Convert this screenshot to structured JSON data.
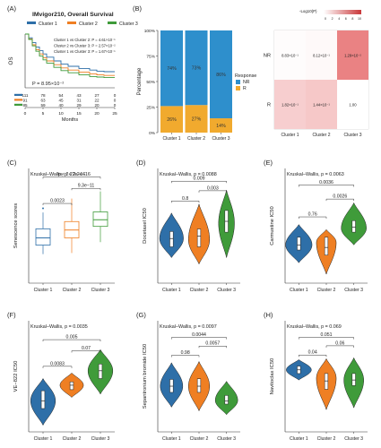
{
  "figure": {
    "colors": {
      "cluster1": "#2e6fa8",
      "cluster2": "#ef7f23",
      "cluster3": "#3f9b3a",
      "nr": "#2e8fcc",
      "r": "#f1aa2e"
    },
    "clusters": [
      "Cluster 1",
      "Cluster 2",
      "Cluster 3"
    ]
  },
  "chart_data": [
    {
      "id": "A",
      "panel_label": "(A)",
      "type": "line",
      "title": "IMvigor210, Overall Survival",
      "ylabel": "OS",
      "xlabel": "Months",
      "legend": [
        "Cluster 1",
        "Cluster 2",
        "Cluster 3"
      ],
      "annotations": [
        "Cluster 1 vs Cluster 2: P = 4.61×10⁻¹",
        "Cluster 2 vs Cluster 3: P = 2.57×10⁻²",
        "Cluster 1 vs Cluster 3: P = 1.67×10⁻¹"
      ],
      "pvalue": "P = 8.95×10⁻²",
      "xticks": [
        "0",
        "5",
        "10",
        "15",
        "20",
        "25"
      ],
      "xlim": [
        0,
        25
      ],
      "ylim": [
        0,
        1
      ],
      "series": [
        {
          "name": "Cluster 1",
          "x": [
            0,
            1,
            2,
            3,
            4,
            5,
            6,
            8,
            10,
            12,
            15,
            18,
            20,
            22,
            25
          ],
          "y": [
            1.0,
            0.93,
            0.84,
            0.76,
            0.69,
            0.63,
            0.57,
            0.5,
            0.44,
            0.4,
            0.36,
            0.33,
            0.31,
            0.3,
            0.3
          ]
        },
        {
          "name": "Cluster 2",
          "x": [
            0,
            1,
            2,
            3,
            4,
            5,
            6,
            8,
            10,
            12,
            15,
            18,
            20,
            22,
            25
          ],
          "y": [
            1.0,
            0.91,
            0.8,
            0.71,
            0.63,
            0.56,
            0.5,
            0.43,
            0.37,
            0.33,
            0.29,
            0.26,
            0.24,
            0.23,
            0.23
          ]
        },
        {
          "name": "Cluster 3",
          "x": [
            0,
            1,
            2,
            3,
            4,
            5,
            6,
            8,
            10,
            12,
            15,
            18,
            20,
            22,
            25
          ],
          "y": [
            1.0,
            0.9,
            0.78,
            0.68,
            0.59,
            0.52,
            0.46,
            0.38,
            0.32,
            0.28,
            0.24,
            0.21,
            0.2,
            0.19,
            0.19
          ]
        }
      ],
      "risk_table": [
        [
          "111",
          "78",
          "54",
          "43",
          "27",
          "0"
        ],
        [
          "91",
          "63",
          "45",
          "31",
          "22",
          "0"
        ],
        [
          "85",
          "59",
          "40",
          "29",
          "20",
          "0"
        ]
      ]
    },
    {
      "id": "B1",
      "panel_label": "(B)",
      "type": "bar",
      "ylabel": "Percentage",
      "categories": [
        "Cluster 1",
        "Cluster 2",
        "Cluster 3"
      ],
      "yticks": [
        "0%",
        "25%",
        "50%",
        "75%",
        "100%"
      ],
      "series": [
        {
          "name": "R",
          "values": [
            26,
            27,
            14
          ],
          "labels": [
            "26%",
            "27%",
            "14%"
          ]
        },
        {
          "name": "NR",
          "values": [
            74,
            73,
            86
          ],
          "labels": [
            "74%",
            "73%",
            "86%"
          ]
        }
      ],
      "legend_title": "Response",
      "legend": [
        "NR",
        "R"
      ]
    },
    {
      "id": "B2",
      "type": "heatmap",
      "legend_title": "-Log10(P)",
      "legend_ticks": [
        "0",
        "2",
        "4",
        "6",
        "8",
        "10"
      ],
      "rows": [
        "NR",
        "R"
      ],
      "cols": [
        "Cluster 1",
        "Cluster 2",
        "Cluster 3"
      ],
      "cells": [
        {
          "row": 0,
          "col": 0,
          "label": "8.83×10⁻¹",
          "value": 0.05
        },
        {
          "row": 0,
          "col": 1,
          "label": "8.12×10⁻¹",
          "value": 0.09
        },
        {
          "row": 0,
          "col": 2,
          "label": "1.29×10⁻²",
          "value": 1.9
        },
        {
          "row": 1,
          "col": 0,
          "label": "1.82×10⁻¹",
          "value": 0.74
        },
        {
          "row": 1,
          "col": 1,
          "label": "1.44×10⁻¹",
          "value": 0.84
        },
        {
          "row": 1,
          "col": 2,
          "label": "1.00",
          "value": 0.0
        }
      ]
    },
    {
      "id": "C",
      "panel_label": "(C)",
      "type": "box",
      "ylabel": "Senescence scores",
      "test": "Kruskal–Wallis, p < 2.2e−16",
      "categories": [
        "Cluster 1",
        "Cluster 2",
        "Cluster 3"
      ],
      "ylim": [
        -0.9,
        1.0
      ],
      "boxes": [
        {
          "q1": -0.27,
          "med": -0.15,
          "q3": 0.0,
          "lo": -0.42,
          "hi": 0.27,
          "outliers": [
            0.34
          ]
        },
        {
          "q1": -0.15,
          "med": -0.02,
          "q3": 0.12,
          "lo": -0.4,
          "hi": 0.5,
          "outliers": []
        },
        {
          "q1": 0.04,
          "med": 0.15,
          "q3": 0.28,
          "lo": -0.22,
          "hi": 0.62,
          "outliers": []
        }
      ],
      "comparisons": [
        {
          "a": 0,
          "b": 1,
          "label": "0.0023",
          "y": 0.42
        },
        {
          "a": 1,
          "b": 2,
          "label": "9.3e−11",
          "y": 0.67
        },
        {
          "a": 0,
          "b": 2,
          "label": "p < 2.22e−16",
          "y": 0.86
        }
      ]
    },
    {
      "id": "D",
      "panel_label": "(D)",
      "type": "violin",
      "ylabel": "Docetaxel IC50",
      "test": "Kruskal–Wallis, p = 0.0088",
      "categories": [
        "Cluster 1",
        "Cluster 2",
        "Cluster 3"
      ],
      "ylim": [
        -10,
        8
      ],
      "violins": [
        {
          "min": -6.0,
          "max": 1.0,
          "peak": -3.0,
          "width": 0.36,
          "q1": -4.3,
          "med": -3.0,
          "q3": -1.9
        },
        {
          "min": -7.0,
          "max": 2.4,
          "peak": -3.2,
          "width": 0.32,
          "q1": -4.3,
          "med": -2.6,
          "q3": -1.5
        },
        {
          "min": -6.0,
          "max": 4.6,
          "peak": -0.6,
          "width": 0.24,
          "q1": -2.0,
          "med": -0.3,
          "q3": 1.4
        }
      ],
      "comparisons": [
        {
          "a": 0,
          "b": 1,
          "label": "0.8",
          "y": 2.9
        },
        {
          "a": 1,
          "b": 2,
          "label": "0.003",
          "y": 4.5
        },
        {
          "a": 0,
          "b": 2,
          "label": "0.009",
          "y": 6.0
        }
      ]
    },
    {
      "id": "E",
      "panel_label": "(E)",
      "type": "violin",
      "ylabel": "Carmustine IC50",
      "test": "Kruskal–Wallis, p = 0.0063",
      "categories": [
        "Cluster 1",
        "Cluster 2",
        "Cluster 3"
      ],
      "ylim": [
        3,
        12
      ],
      "violins": [
        {
          "min": 4.6,
          "max": 7.6,
          "peak": 6.0,
          "width": 0.4,
          "q1": 5.6,
          "med": 6.0,
          "q3": 6.6
        },
        {
          "min": 3.7,
          "max": 7.2,
          "peak": 6.2,
          "width": 0.3,
          "q1": 5.2,
          "med": 5.8,
          "q3": 6.6
        },
        {
          "min": 6.0,
          "max": 9.3,
          "peak": 7.3,
          "width": 0.38,
          "q1": 7.0,
          "med": 7.4,
          "q3": 7.9
        }
      ],
      "comparisons": [
        {
          "a": 0,
          "b": 1,
          "label": "0.76",
          "y": 8.2
        },
        {
          "a": 1,
          "b": 2,
          "label": "0.0026",
          "y": 9.6
        },
        {
          "a": 0,
          "b": 2,
          "label": "0.0036",
          "y": 10.7
        }
      ]
    },
    {
      "id": "F",
      "panel_label": "(F)",
      "type": "violin",
      "ylabel": "VE−822 IC50",
      "test": "Kruskal–Wallis, p = 0.0035",
      "categories": [
        "Cluster 1",
        "Cluster 2",
        "Cluster 3"
      ],
      "ylim": [
        0,
        10
      ],
      "violins": [
        {
          "min": 0.6,
          "max": 4.8,
          "peak": 2.8,
          "width": 0.36,
          "q1": 2.1,
          "med": 2.8,
          "q3": 3.7
        },
        {
          "min": 3.1,
          "max": 5.3,
          "peak": 4.2,
          "width": 0.34,
          "q1": 3.8,
          "med": 4.2,
          "q3": 4.5
        },
        {
          "min": 3.4,
          "max": 7.4,
          "peak": 5.5,
          "width": 0.36,
          "q1": 4.8,
          "med": 5.5,
          "q3": 6.1
        }
      ],
      "comparisons": [
        {
          "a": 0,
          "b": 1,
          "label": "0.0083",
          "y": 5.9
        },
        {
          "a": 1,
          "b": 2,
          "label": "0.07",
          "y": 7.3
        },
        {
          "a": 0,
          "b": 2,
          "label": "0.005",
          "y": 8.3
        }
      ]
    },
    {
      "id": "G",
      "panel_label": "(G)",
      "type": "violin",
      "ylabel": "Sepantronium bromide IC50",
      "test": "Kruskal–Wallis, p = 0.0097",
      "categories": [
        "Cluster 1",
        "Cluster 2",
        "Cluster 3"
      ],
      "ylim": [
        -10,
        8
      ],
      "violins": [
        {
          "min": -6.0,
          "max": 1.2,
          "peak": -2.6,
          "width": 0.34,
          "q1": -3.6,
          "med": -2.6,
          "q3": -1.5
        },
        {
          "min": -6.6,
          "max": 1.4,
          "peak": -2.6,
          "width": 0.32,
          "q1": -3.6,
          "med": -2.6,
          "q3": -1.4
        },
        {
          "min": -7.2,
          "max": -1.8,
          "peak": -4.9,
          "width": 0.34,
          "q1": -5.5,
          "med": -5.0,
          "q3": -4.1
        }
      ],
      "comparisons": [
        {
          "a": 0,
          "b": 1,
          "label": "0.98",
          "y": 2.4
        },
        {
          "a": 1,
          "b": 2,
          "label": "0.0057",
          "y": 3.9
        },
        {
          "a": 0,
          "b": 2,
          "label": "0.0044",
          "y": 5.3
        }
      ]
    },
    {
      "id": "H",
      "panel_label": "(H)",
      "type": "violin",
      "ylabel": "Navitoclax IC50",
      "test": "Kruskal–Wallis, p = 0.069",
      "categories": [
        "Cluster 1",
        "Cluster 2",
        "Cluster 3"
      ],
      "ylim": [
        -5,
        7
      ],
      "violins": [
        {
          "min": 0.6,
          "max": 2.8,
          "peak": 1.7,
          "width": 0.38,
          "q1": 1.3,
          "med": 1.7,
          "q3": 2.1
        },
        {
          "min": -2.6,
          "max": 2.9,
          "peak": 0.8,
          "width": 0.3,
          "q1": -0.4,
          "med": 0.5,
          "q3": 1.3
        },
        {
          "min": -2.4,
          "max": 3.0,
          "peak": 0.6,
          "width": 0.3,
          "q1": 0.0,
          "med": 0.6,
          "q3": 1.3
        }
      ],
      "comparisons": [
        {
          "a": 0,
          "b": 1,
          "label": "0.04",
          "y": 3.3
        },
        {
          "a": 1,
          "b": 2,
          "label": "0.06",
          "y": 4.3
        },
        {
          "a": 0,
          "b": 2,
          "label": "0.051",
          "y": 5.2
        }
      ]
    }
  ]
}
